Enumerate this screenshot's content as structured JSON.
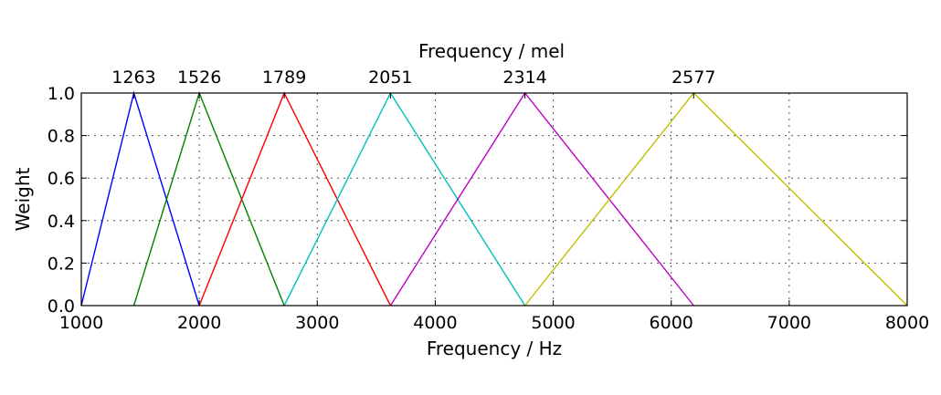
{
  "chart_data": {
    "type": "line",
    "xlabel": "Frequency / Hz",
    "ylabel": "Weight",
    "top_xlabel": "Frequency / mel",
    "xlim": [
      1000,
      8000
    ],
    "ylim": [
      0.0,
      1.0
    ],
    "xticks": [
      "1000",
      "2000",
      "3000",
      "4000",
      "5000",
      "6000",
      "7000",
      "8000"
    ],
    "yticks": [
      "0.0",
      "0.2",
      "0.4",
      "0.6",
      "0.8",
      "1.0"
    ],
    "grid": true,
    "series": [
      {
        "color": "#0000ff",
        "x": [
          1000,
          1445,
          2000
        ],
        "y": [
          0,
          1,
          0
        ],
        "top_label": "1263"
      },
      {
        "color": "#008000",
        "x": [
          1445,
          2000,
          2720
        ],
        "y": [
          0,
          1,
          0
        ],
        "top_label": "1526"
      },
      {
        "color": "#ff0000",
        "x": [
          2000,
          2720,
          3620
        ],
        "y": [
          0,
          1,
          0
        ],
        "top_label": "1789"
      },
      {
        "color": "#00bfbf",
        "x": [
          2720,
          3620,
          4760
        ],
        "y": [
          0,
          1,
          0
        ],
        "top_label": "2051"
      },
      {
        "color": "#bf00bf",
        "x": [
          3620,
          4760,
          6190
        ],
        "y": [
          0,
          1,
          0
        ],
        "top_label": "2314"
      },
      {
        "color": "#bfbf00",
        "x": [
          4760,
          6190,
          8000
        ],
        "y": [
          0,
          1,
          0
        ],
        "top_label": "2577"
      }
    ]
  }
}
